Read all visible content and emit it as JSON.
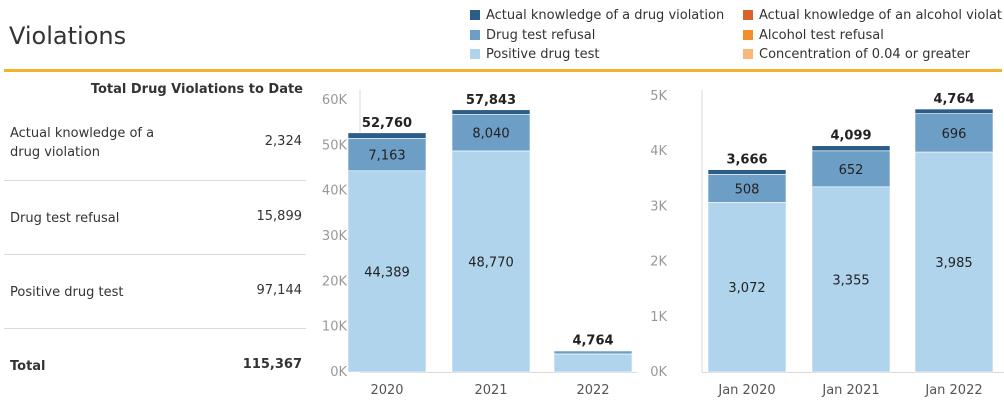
{
  "title": "Violations",
  "colors": {
    "accent_line": "#f2b32b",
    "actual_knowledge_drug": "#2c5c8a",
    "drug_test_refusal": "#6d9ec6",
    "positive_drug_test": "#b0d4ec",
    "actual_knowledge_alcohol": "#d9622b",
    "alcohol_test_refusal": "#f28e2b",
    "concentration": "#f7b877"
  },
  "legend": [
    {
      "label": "Actual knowledge of a drug violation",
      "color": "#2c5c8a"
    },
    {
      "label": "Actual knowledge of an alcohol violat..",
      "color": "#d9622b"
    },
    {
      "label": "Drug test refusal",
      "color": "#6d9ec6"
    },
    {
      "label": "Alcohol test refusal",
      "color": "#f28e2b"
    },
    {
      "label": "Positive drug test",
      "color": "#b0d4ec"
    },
    {
      "label": "Concentration of 0.04 or greater",
      "color": "#f7b877"
    }
  ],
  "table": {
    "header": "Total Drug Violations to Date",
    "rows": [
      {
        "label": "Actual knowledge of a drug violation",
        "value": "2,324"
      },
      {
        "label": "Drug test refusal",
        "value": "15,899"
      },
      {
        "label": "Positive drug test",
        "value": "97,144"
      },
      {
        "label": "Total",
        "value": "115,367"
      }
    ]
  },
  "chart_data": [
    {
      "type": "bar",
      "stacked": true,
      "categories": [
        "2020",
        "2021",
        "2022"
      ],
      "series": [
        {
          "name": "Positive drug test",
          "color": "#b0d4ec",
          "values": [
            44389,
            48770,
            3985
          ]
        },
        {
          "name": "Drug test refusal",
          "color": "#6d9ec6",
          "values": [
            7163,
            8040,
            696
          ]
        },
        {
          "name": "Actual knowledge of a drug violation",
          "color": "#2c5c8a",
          "values": [
            1208,
            1033,
            83
          ]
        }
      ],
      "data_labels": {
        "positive": [
          "44,389",
          "48,770",
          ""
        ],
        "refusal": [
          "7,163",
          "8,040",
          ""
        ]
      },
      "totals": [
        "52,760",
        "57,843",
        "4,764"
      ],
      "yticks": [
        "0K",
        "10K",
        "20K",
        "30K",
        "40K",
        "50K",
        "60K"
      ],
      "ylim": [
        0,
        60000
      ],
      "grid": false
    },
    {
      "type": "bar",
      "stacked": true,
      "categories": [
        "Jan 2020",
        "Jan 2021",
        "Jan 2022"
      ],
      "series": [
        {
          "name": "Positive drug test",
          "color": "#b0d4ec",
          "values": [
            3072,
            3355,
            3985
          ]
        },
        {
          "name": "Drug test refusal",
          "color": "#6d9ec6",
          "values": [
            508,
            652,
            696
          ]
        },
        {
          "name": "Actual knowledge of a drug violation",
          "color": "#2c5c8a",
          "values": [
            86,
            92,
            83
          ]
        }
      ],
      "data_labels": {
        "positive": [
          "3,072",
          "3,355",
          "3,985"
        ],
        "refusal": [
          "508",
          "652",
          "696"
        ]
      },
      "totals": [
        "3,666",
        "4,099",
        "4,764"
      ],
      "yticks": [
        "0K",
        "1K",
        "2K",
        "3K",
        "4K",
        "5K"
      ],
      "ylim": [
        0,
        5000
      ],
      "grid": false
    }
  ]
}
